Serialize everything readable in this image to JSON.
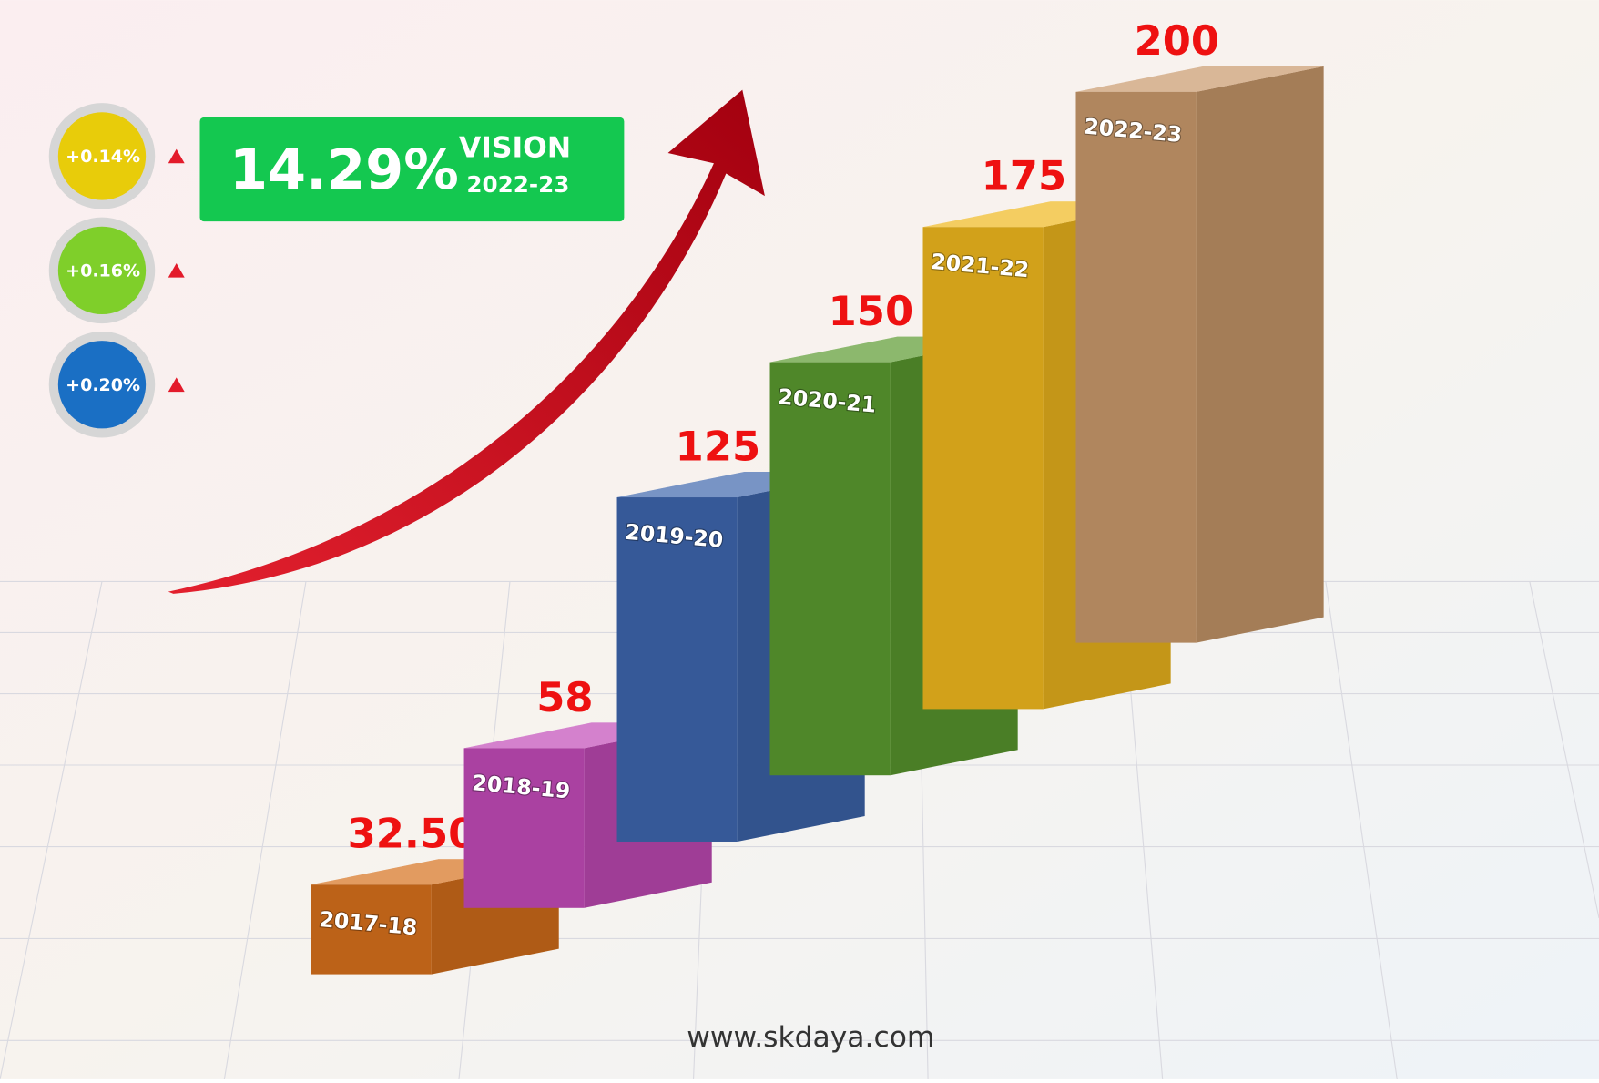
{
  "chart_data": {
    "type": "bar3d",
    "categories": [
      "2017-18",
      "2018-19",
      "2019-20",
      "2020-21",
      "2021-22",
      "2022-23"
    ],
    "values": [
      32.5,
      58,
      125,
      150,
      175,
      200
    ],
    "value_labels": [
      "32.50",
      "58",
      "125",
      "150",
      "175",
      "200"
    ],
    "colors": [
      "#d6701c",
      "#c24bb8",
      "#3e66ad",
      "#5b9a2f",
      "#f0b81e",
      "#c9996b"
    ],
    "label_color": "#ee1111"
  },
  "highlight": {
    "value": "14.29%",
    "title": "VISION",
    "period": "2022-23",
    "color": "#14c850"
  },
  "badges": [
    {
      "label": "+0.14%",
      "color": "#e8cc0a"
    },
    {
      "label": "+0.16%",
      "color": "#7fcf2a"
    },
    {
      "label": "+0.20%",
      "color": "#1a6fc4"
    }
  ],
  "footer": "www.skdaya.com"
}
